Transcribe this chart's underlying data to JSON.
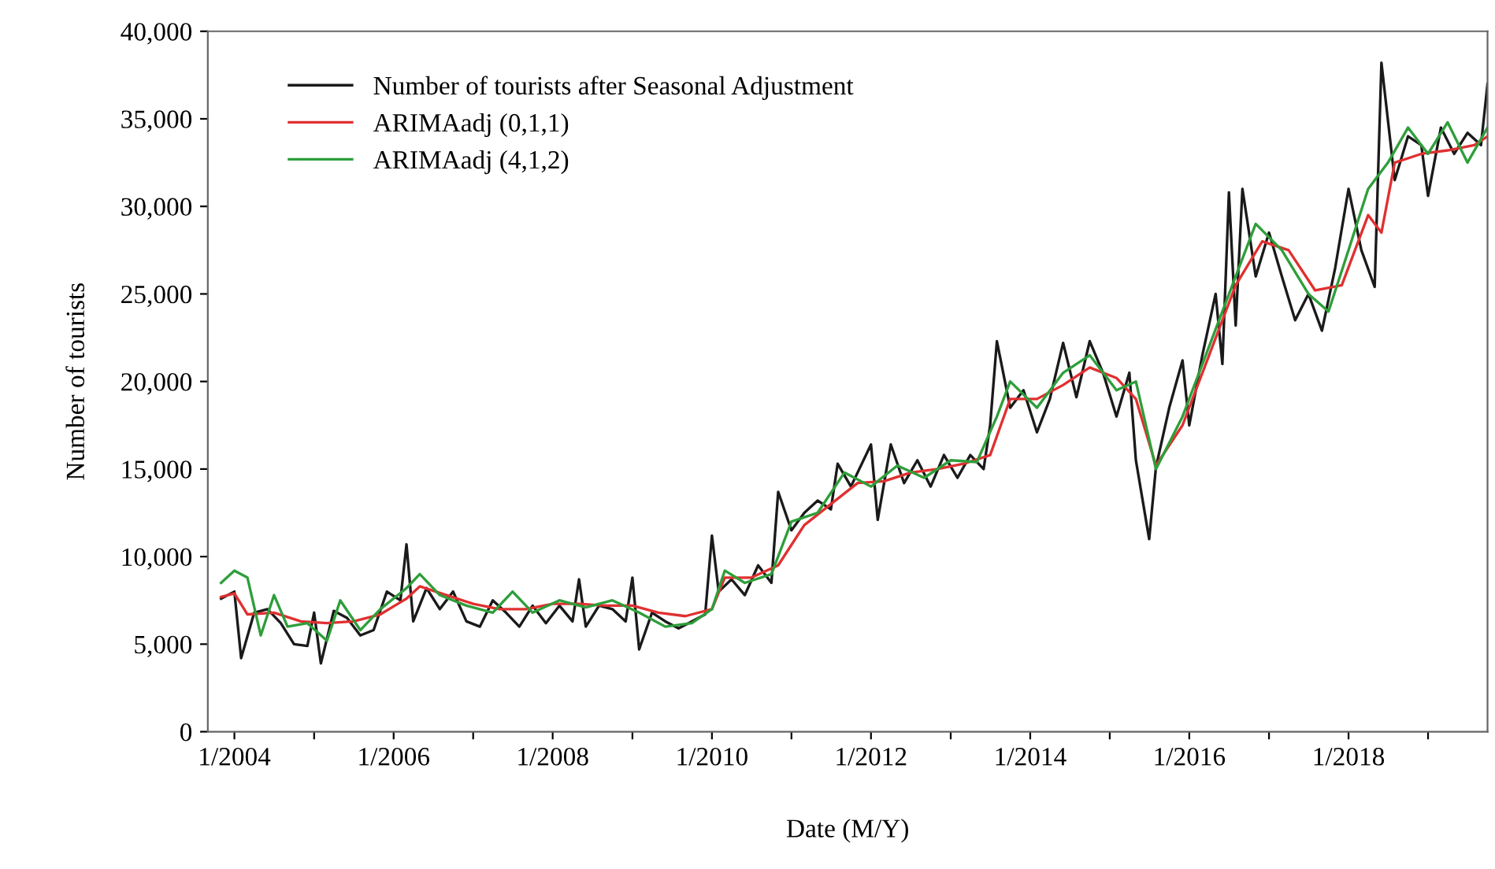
{
  "chart_data": {
    "type": "line",
    "xlabel": "Date (M/Y)",
    "ylabel": "Number of tourists",
    "xlim": [
      "2003-09",
      "2019-10"
    ],
    "xticks": [
      {
        "value": "2004-01",
        "label": "1/2004"
      },
      {
        "value": "2005-01",
        "label": null
      },
      {
        "value": "2006-01",
        "label": "1/2006"
      },
      {
        "value": "2007-01",
        "label": null
      },
      {
        "value": "2008-01",
        "label": "1/2008"
      },
      {
        "value": "2009-01",
        "label": null
      },
      {
        "value": "2010-01",
        "label": "1/2010"
      },
      {
        "value": "2011-01",
        "label": null
      },
      {
        "value": "2012-01",
        "label": "1/2012"
      },
      {
        "value": "2013-01",
        "label": null
      },
      {
        "value": "2014-01",
        "label": "1/2014"
      },
      {
        "value": "2015-01",
        "label": null
      },
      {
        "value": "2016-01",
        "label": "1/2016"
      },
      {
        "value": "2017-01",
        "label": null
      },
      {
        "value": "2018-01",
        "label": "1/2018"
      },
      {
        "value": "2019-01",
        "label": null
      }
    ],
    "ylim": [
      0,
      40000
    ],
    "yticks": [
      0,
      {
        "value": 5000,
        "label": "5,000"
      },
      {
        "value": 10000,
        "label": "10,000"
      },
      {
        "value": 15000,
        "label": "15,000"
      },
      {
        "value": 20000,
        "label": "20,000"
      },
      {
        "value": 25000,
        "label": "25,000"
      },
      {
        "value": 30000,
        "label": "30,000"
      },
      {
        "value": 35000,
        "label": "35,000"
      },
      {
        "value": 40000,
        "label": "40,000"
      }
    ],
    "grid": false,
    "legend": "top left",
    "marker": "none",
    "line_style": "solid",
    "series": [
      {
        "name": "Number of tourists after Seasonal Adjustment",
        "color": "#1a1a1a",
        "x": [
          "2003-11",
          "2004-01",
          "2004-02",
          "2004-04",
          "2004-06",
          "2004-08",
          "2004-10",
          "2004-12",
          "2005-01",
          "2005-02",
          "2005-04",
          "2005-06",
          "2005-08",
          "2005-10",
          "2005-12",
          "2006-02",
          "2006-03",
          "2006-04",
          "2006-06",
          "2006-08",
          "2006-10",
          "2006-12",
          "2007-02",
          "2007-04",
          "2007-06",
          "2007-08",
          "2007-10",
          "2007-12",
          "2008-02",
          "2008-04",
          "2008-05",
          "2008-06",
          "2008-08",
          "2008-10",
          "2008-12",
          "2009-01",
          "2009-02",
          "2009-04",
          "2009-06",
          "2009-08",
          "2009-10",
          "2009-12",
          "2010-01",
          "2010-02",
          "2010-04",
          "2010-06",
          "2010-08",
          "2010-10",
          "2010-11",
          "2011-01",
          "2011-03",
          "2011-05",
          "2011-07",
          "2011-08",
          "2011-10",
          "2012-01",
          "2012-02",
          "2012-04",
          "2012-06",
          "2012-08",
          "2012-10",
          "2012-12",
          "2013-02",
          "2013-04",
          "2013-06",
          "2013-07",
          "2013-08",
          "2013-10",
          "2013-12",
          "2014-02",
          "2014-04",
          "2014-06",
          "2014-08",
          "2014-10",
          "2014-12",
          "2015-02",
          "2015-04",
          "2015-05",
          "2015-07",
          "2015-08",
          "2015-10",
          "2015-12",
          "2016-01",
          "2016-03",
          "2016-05",
          "2016-06",
          "2016-07",
          "2016-08",
          "2016-09",
          "2016-11",
          "2017-01",
          "2017-03",
          "2017-05",
          "2017-07",
          "2017-09",
          "2017-11",
          "2018-01",
          "2018-03",
          "2018-05",
          "2018-06",
          "2018-08",
          "2018-10",
          "2018-12",
          "2019-01",
          "2019-03",
          "2019-05",
          "2019-07",
          "2019-09",
          "2019-10"
        ],
        "values": [
          7600,
          8000,
          4200,
          6800,
          7000,
          6200,
          5000,
          4900,
          6800,
          3900,
          6900,
          6500,
          5500,
          5800,
          8000,
          7500,
          10700,
          6300,
          8200,
          7000,
          8000,
          6300,
          6000,
          7500,
          6800,
          6000,
          7200,
          6200,
          7200,
          6300,
          8700,
          6000,
          7200,
          7000,
          6300,
          8800,
          4700,
          6800,
          6300,
          5900,
          6300,
          6700,
          11200,
          8000,
          8700,
          7800,
          9500,
          8500,
          13700,
          11500,
          12500,
          13200,
          12700,
          15300,
          14000,
          16400,
          12100,
          16400,
          14200,
          15500,
          14000,
          15800,
          14500,
          15800,
          15000,
          17500,
          22300,
          18500,
          19500,
          17100,
          19000,
          22200,
          19100,
          22300,
          20500,
          18000,
          20500,
          15500,
          11000,
          15100,
          18500,
          21200,
          17500,
          21500,
          25000,
          21000,
          30800,
          23200,
          31000,
          26000,
          28500,
          26000,
          23500,
          25000,
          22900,
          26500,
          31000,
          27500,
          25400,
          38200,
          31500,
          34000,
          33500,
          30600,
          34500,
          33000,
          34200,
          33500,
          37000
        ]
      },
      {
        "name": "ARIMAadj (0,1,1)",
        "color": "#e03030",
        "x": [
          "2003-11",
          "2004-01",
          "2004-03",
          "2004-07",
          "2004-11",
          "2005-03",
          "2005-07",
          "2005-11",
          "2006-03",
          "2006-05",
          "2006-09",
          "2007-01",
          "2007-05",
          "2007-09",
          "2008-01",
          "2008-05",
          "2008-09",
          "2009-01",
          "2009-05",
          "2009-09",
          "2010-01",
          "2010-03",
          "2010-07",
          "2010-11",
          "2011-03",
          "2011-07",
          "2011-11",
          "2012-03",
          "2012-07",
          "2012-11",
          "2013-03",
          "2013-07",
          "2013-10",
          "2014-02",
          "2014-06",
          "2014-10",
          "2015-02",
          "2015-05",
          "2015-08",
          "2015-12",
          "2016-04",
          "2016-08",
          "2016-12",
          "2017-04",
          "2017-08",
          "2017-12",
          "2018-04",
          "2018-06",
          "2018-08",
          "2018-12",
          "2019-04",
          "2019-08",
          "2019-10"
        ],
        "values": [
          7700,
          7900,
          6700,
          6800,
          6300,
          6200,
          6300,
          6700,
          7600,
          8300,
          7800,
          7300,
          7000,
          7000,
          7300,
          7300,
          7200,
          7200,
          6800,
          6600,
          7000,
          8800,
          8800,
          9500,
          11800,
          13000,
          14200,
          14300,
          14800,
          15000,
          15300,
          15800,
          19000,
          19000,
          19800,
          20800,
          20200,
          19000,
          15200,
          17500,
          21500,
          25500,
          28000,
          27500,
          25200,
          25500,
          29500,
          28500,
          32500,
          33000,
          33200,
          33500,
          34000
        ]
      },
      {
        "name": "ARIMAadj (4,1,2)",
        "color": "#2e9e3a",
        "x": [
          "2003-11",
          "2004-01",
          "2004-03",
          "2004-05",
          "2004-07",
          "2004-09",
          "2004-12",
          "2005-03",
          "2005-05",
          "2005-08",
          "2005-11",
          "2006-03",
          "2006-05",
          "2006-08",
          "2006-12",
          "2007-04",
          "2007-07",
          "2007-10",
          "2008-02",
          "2008-06",
          "2008-10",
          "2009-02",
          "2009-06",
          "2009-10",
          "2010-01",
          "2010-03",
          "2010-06",
          "2010-10",
          "2011-01",
          "2011-05",
          "2011-09",
          "2012-01",
          "2012-05",
          "2012-09",
          "2013-01",
          "2013-05",
          "2013-08",
          "2013-10",
          "2014-02",
          "2014-06",
          "2014-10",
          "2015-02",
          "2015-05",
          "2015-08",
          "2015-12",
          "2016-04",
          "2016-08",
          "2016-11",
          "2017-03",
          "2017-07",
          "2017-10",
          "2018-01",
          "2018-04",
          "2018-07",
          "2018-10",
          "2019-01",
          "2019-04",
          "2019-07",
          "2019-10"
        ],
        "values": [
          8500,
          9200,
          8800,
          5500,
          7800,
          6000,
          6200,
          5200,
          7500,
          5800,
          7000,
          8200,
          9000,
          7800,
          7200,
          6800,
          8000,
          6800,
          7500,
          7100,
          7500,
          6800,
          6000,
          6200,
          7000,
          9200,
          8500,
          9000,
          12000,
          12500,
          14800,
          14000,
          15200,
          14500,
          15500,
          15400,
          18000,
          20000,
          18500,
          20500,
          21500,
          19500,
          20000,
          15000,
          18000,
          22000,
          26000,
          29000,
          27500,
          25000,
          24000,
          27500,
          31000,
          32500,
          34500,
          33000,
          34800,
          32500,
          34500
        ]
      }
    ]
  }
}
